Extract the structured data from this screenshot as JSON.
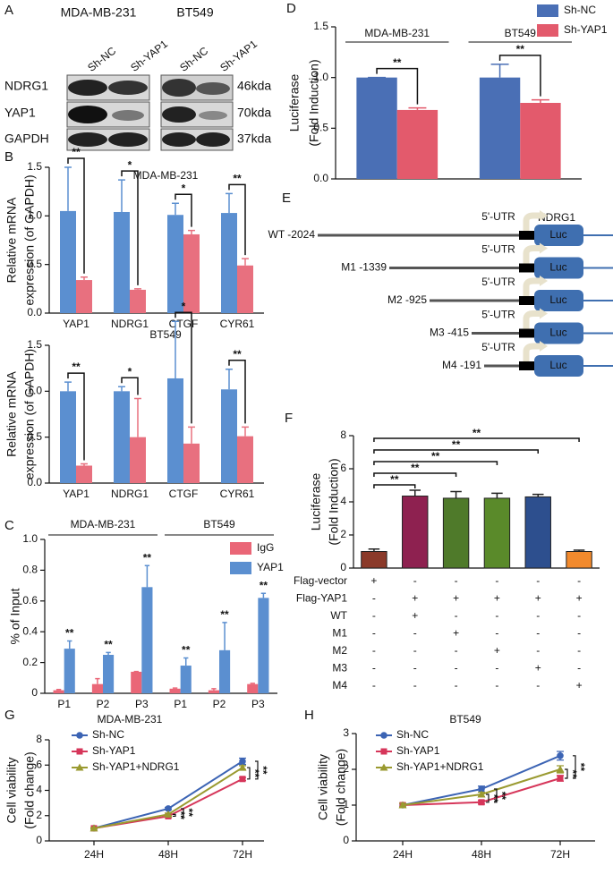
{
  "panel_labels": [
    "A",
    "B",
    "C",
    "D",
    "E",
    "F",
    "G",
    "H"
  ],
  "blot": {
    "cell_lines": [
      "MDA-MB-231",
      "BT549"
    ],
    "lanes": [
      "Sh-NC",
      "Sh-YAP1",
      "Sh-NC",
      "Sh-YAP1"
    ],
    "proteins": [
      "NDRG1",
      "YAP1",
      "GAPDH"
    ],
    "sizes": [
      "46kda",
      "70kda",
      "37kda"
    ]
  },
  "diagram": {
    "gene": "NDRG1",
    "utr": "5'-UTR",
    "reporter": "Luc",
    "constructs": [
      "WT -2024",
      "M1 -1339",
      "M2 -925",
      "M3 -415",
      "M4 -191"
    ]
  },
  "chart_data": [
    {
      "type": "bar",
      "title": "MDA-MB-231",
      "y_label": [
        "Relative mRNA",
        "expression (of GAPDH)"
      ],
      "categories": [
        "YAP1",
        "NDRG1",
        "CTGF",
        "CYR61"
      ],
      "series": [
        {
          "color": "#5b8fd0",
          "values": [
            1.05,
            1.04,
            1.01,
            1.03
          ],
          "errors": [
            0.45,
            0.33,
            0.12,
            0.2
          ]
        },
        {
          "color": "#e8707f",
          "values": [
            0.34,
            0.24,
            0.81,
            0.49
          ],
          "errors": [
            0.03,
            0.01,
            0.04,
            0.07
          ]
        }
      ],
      "ylim": [
        0,
        1.5
      ],
      "yticks": [
        {
          "value": 0,
          "label": "0.0"
        },
        0.5,
        {
          "value": 1,
          "label": "1.0"
        },
        1.5
      ],
      "annotations": [
        "**",
        "*",
        "*",
        "**"
      ]
    },
    {
      "type": "bar",
      "title": "BT549",
      "y_label": [
        "Relative mRNA",
        "expression (of GAPDH)"
      ],
      "categories": [
        "YAP1",
        "NDRG1",
        "CTGF",
        "CYR61"
      ],
      "series": [
        {
          "color": "#5b8fd0",
          "values": [
            1.0,
            1.0,
            1.14,
            1.02
          ],
          "errors": [
            0.1,
            0.05,
            0.62,
            0.22
          ]
        },
        {
          "color": "#e8707f",
          "values": [
            0.19,
            0.5,
            0.43,
            0.51
          ],
          "errors": [
            0.02,
            0.42,
            0.18,
            0.1
          ]
        }
      ],
      "ylim": [
        0,
        1.5
      ],
      "yticks": [
        {
          "value": 0,
          "label": "0.0"
        },
        0.5,
        {
          "value": 1,
          "label": "1.0"
        },
        1.5
      ],
      "annotations": [
        "**",
        "*",
        "*",
        "**"
      ]
    },
    {
      "type": "bar",
      "y_label": [
        "% of Input"
      ],
      "groups": [
        "MDA-MB-231",
        "BT549"
      ],
      "categories": [
        "P1",
        "P2",
        "P3",
        "P1",
        "P2",
        "P3"
      ],
      "series": [
        {
          "name": "IgG",
          "color": "#ea6677",
          "values": [
            0.02,
            0.06,
            0.14,
            0.03,
            0.02,
            0.06
          ],
          "errors": [
            0.005,
            0.035,
            0.002,
            0.004,
            0.01,
            0.005
          ]
        },
        {
          "name": "YAP1",
          "color": "#5b8fd0",
          "values": [
            0.29,
            0.25,
            0.69,
            0.18,
            0.28,
            0.62
          ],
          "errors": [
            0.05,
            0.015,
            0.14,
            0.05,
            0.18,
            0.03
          ]
        }
      ],
      "ylim": [
        0,
        1
      ],
      "yticks": [
        0,
        0.2,
        0.4,
        0.6,
        0.8,
        {
          "value": 1,
          "label": "1.0"
        }
      ],
      "annotations": [
        "**",
        "**",
        "**",
        "**",
        "**",
        "**"
      ],
      "legend": "upper right"
    },
    {
      "type": "bar",
      "y_label": [
        "Luciferase",
        "(Fold Induction)"
      ],
      "categories": [
        "MDA-MB-231",
        "BT549"
      ],
      "series": [
        {
          "name": "Sh-NC",
          "color": "#4a6fb5",
          "values": [
            1.0,
            1.0
          ],
          "errors": [
            0,
            0.13
          ]
        },
        {
          "name": "Sh-YAP1",
          "color": "#e35a6c",
          "values": [
            0.68,
            0.75
          ],
          "errors": [
            0.02,
            0.03
          ]
        }
      ],
      "ylim": [
        0,
        1.5
      ],
      "yticks": [
        {
          "value": 0,
          "label": "0.0"
        },
        0.5,
        {
          "value": 1,
          "label": "1.0"
        },
        1.5
      ],
      "annotations": [
        "**",
        "**"
      ],
      "legend": "upper right"
    },
    {
      "type": "bar",
      "y_label": [
        "Luciferase",
        "(Fold Induction)"
      ],
      "values": [
        1.0,
        4.35,
        4.22,
        4.22,
        4.3,
        1.0
      ],
      "errors": [
        0.15,
        0.35,
        0.4,
        0.3,
        0.15,
        0.08
      ],
      "colors": [
        "#8b3a2a",
        "#8e2150",
        "#4f7a2a",
        "#5a8a2a",
        "#2d4f8e",
        "#f28a2d"
      ],
      "ylim": [
        0,
        8
      ],
      "yticks": [
        0,
        2,
        4,
        6,
        8
      ],
      "annotations": [
        "**",
        "**",
        "**",
        "**",
        "**"
      ],
      "conditions": {
        "row_names": [
          "Flag-vector",
          "Flag-YAP1",
          "WT",
          "M1",
          "M2",
          "M3",
          "M4"
        ],
        "rows": [
          [
            "+",
            "-",
            "-",
            "-",
            "-",
            "-"
          ],
          [
            "-",
            "+",
            "+",
            "+",
            "+",
            "+"
          ],
          [
            "-",
            "+",
            "-",
            "-",
            "-",
            "-"
          ],
          [
            "-",
            "-",
            "+",
            "-",
            "-",
            "-"
          ],
          [
            "-",
            "-",
            "-",
            "+",
            "-",
            "-"
          ],
          [
            "-",
            "-",
            "-",
            "-",
            "+",
            "-"
          ],
          [
            "-",
            "-",
            "-",
            "-",
            "-",
            "+"
          ]
        ]
      }
    },
    {
      "type": "line",
      "title": "MDA-MB-231",
      "y_label": [
        "Cell viability",
        "(Fold change)"
      ],
      "categories": [
        "24H",
        "48H",
        "72H"
      ],
      "series": [
        {
          "name": "Sh-NC",
          "color": "#3c64b4",
          "marker": "circle",
          "values": [
            1,
            2.55,
            6.3
          ],
          "errors": [
            0.05,
            0.1,
            0.25
          ]
        },
        {
          "name": "Sh-YAP1",
          "color": "#d6365a",
          "marker": "square",
          "values": [
            1,
            1.95,
            4.9
          ],
          "errors": [
            0.05,
            0.1,
            0.12
          ]
        },
        {
          "name": "Sh-YAP1+NDRG1",
          "color": "#9a9a30",
          "marker": "triangle",
          "values": [
            1,
            2.1,
            5.8
          ],
          "errors": [
            0.05,
            0.1,
            0.15
          ]
        }
      ],
      "ylim": [
        0,
        8
      ],
      "yticks": [
        0,
        2,
        4,
        6,
        8
      ],
      "annotations": [
        "**",
        "**",
        "**",
        "**"
      ],
      "legend": "upper left"
    },
    {
      "type": "line",
      "title": "BT549",
      "y_label": [
        "Cell viability",
        "(Fold change)"
      ],
      "categories": [
        "24H",
        "48H",
        "72H"
      ],
      "series": [
        {
          "name": "Sh-NC",
          "color": "#3c64b4",
          "marker": "circle",
          "values": [
            1,
            1.45,
            2.38
          ],
          "errors": [
            0.05,
            0.08,
            0.12
          ]
        },
        {
          "name": "Sh-YAP1",
          "color": "#d6365a",
          "marker": "square",
          "values": [
            1,
            1.08,
            1.75
          ],
          "errors": [
            0.05,
            0.05,
            0.08
          ]
        },
        {
          "name": "Sh-YAP1+NDRG1",
          "color": "#9a9a30",
          "marker": "triangle",
          "values": [
            1,
            1.3,
            2.0
          ],
          "errors": [
            0.05,
            0.06,
            0.1
          ]
        }
      ],
      "ylim": [
        0,
        3
      ],
      "yticks": [
        0,
        1,
        2,
        3
      ],
      "annotations": [
        "**",
        "**",
        "**",
        "**"
      ],
      "legend": "upper left"
    }
  ]
}
